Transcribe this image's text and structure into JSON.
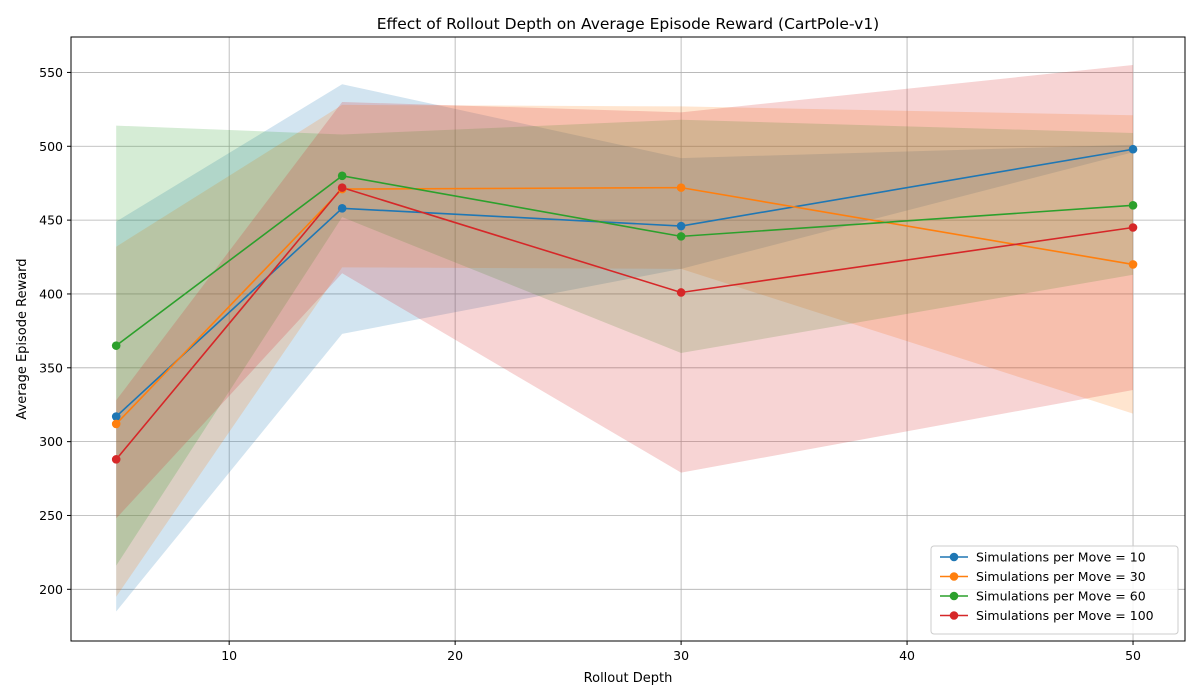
{
  "chart_data": {
    "type": "line",
    "title": "Effect of Rollout Depth on Average Episode Reward (CartPole-v1)",
    "xlabel": "Rollout Depth",
    "ylabel": "Average Episode Reward",
    "x": [
      5,
      15,
      30,
      50
    ],
    "xlim": [
      3,
      52.3
    ],
    "ylim": [
      165,
      574
    ],
    "xticks": [
      10,
      20,
      30,
      40,
      50
    ],
    "yticks": [
      200,
      250,
      300,
      350,
      400,
      450,
      500,
      550
    ],
    "grid": true,
    "legend_position": "lower-right",
    "series": [
      {
        "name": "Simulations per Move = 10",
        "color": "#1f77b4",
        "values": [
          317,
          458,
          446,
          498
        ],
        "lower": [
          185,
          373,
          417,
          496
        ],
        "upper": [
          449,
          542,
          492,
          501
        ]
      },
      {
        "name": "Simulations per Move = 30",
        "color": "#ff7f0e",
        "values": [
          312,
          471,
          472,
          420
        ],
        "lower": [
          195,
          418,
          417,
          319
        ],
        "upper": [
          432,
          528,
          527,
          521
        ]
      },
      {
        "name": "Simulations per Move = 60",
        "color": "#2ca02c",
        "values": [
          365,
          480,
          439,
          460
        ],
        "lower": [
          216,
          452,
          360,
          413
        ],
        "upper": [
          514,
          508,
          518,
          509
        ]
      },
      {
        "name": "Simulations per Move = 100",
        "color": "#d62728",
        "values": [
          288,
          472,
          401,
          445
        ],
        "lower": [
          248,
          414,
          279,
          335
        ],
        "upper": [
          328,
          530,
          523,
          555
        ]
      }
    ]
  }
}
